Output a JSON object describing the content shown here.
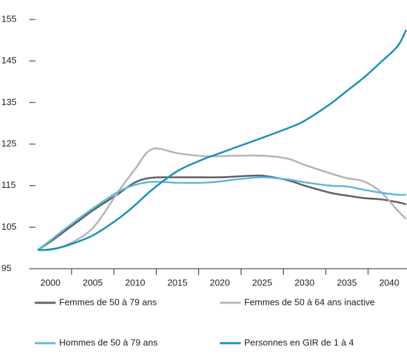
{
  "chart_data": {
    "type": "line",
    "x": [
      1998.5,
      2000,
      2002,
      2005,
      2008,
      2010,
      2012,
      2015,
      2018,
      2020,
      2022,
      2025,
      2028,
      2030,
      2033,
      2035,
      2037,
      2039,
      2041,
      2042
    ],
    "series": [
      {
        "name": "Femmes de 50 à 79 ans",
        "color": "#606060",
        "values": [
          99.5,
          101.5,
          104.5,
          109,
          113,
          115.8,
          116.9,
          117,
          117,
          117,
          117.2,
          117.4,
          116.3,
          115,
          113.3,
          112.6,
          112,
          111.7,
          111,
          110.5
        ]
      },
      {
        "name": "Femmes de 50 à 64 ans inactive",
        "color": "#b4b4b4",
        "values": [
          99.5,
          99.7,
          100.8,
          104.8,
          113.5,
          119,
          123.8,
          122.8,
          122.1,
          122.1,
          122.2,
          122.2,
          121.5,
          120,
          118,
          116.8,
          116,
          113.5,
          109,
          107
        ]
      },
      {
        "name": "Hommes de 50 à 79 ans",
        "color": "#5cbad8",
        "values": [
          99.5,
          101.8,
          105,
          109.5,
          113.5,
          115.2,
          115.9,
          115.7,
          115.7,
          116,
          116.5,
          117,
          116.5,
          115.8,
          115,
          114.8,
          114,
          113.3,
          112.8,
          112.8
        ]
      },
      {
        "name": "Personnes en GIR de 1 à 4",
        "color": "#1a92b2",
        "values": [
          99.5,
          99.6,
          100.6,
          103,
          107,
          110.3,
          114,
          118.5,
          121.3,
          122.8,
          124.3,
          126.5,
          128.8,
          130.6,
          134.6,
          137.8,
          141,
          144.7,
          148.6,
          152.5
        ]
      }
    ],
    "xlim": [
      1997.5,
      2042.1
    ],
    "xticks": [
      2000,
      2005,
      2010,
      2015,
      2020,
      2025,
      2030,
      2035,
      2040
    ],
    "ylim": [
      95,
      155
    ],
    "yticks": [
      95,
      105,
      115,
      125,
      135,
      145,
      155
    ]
  }
}
